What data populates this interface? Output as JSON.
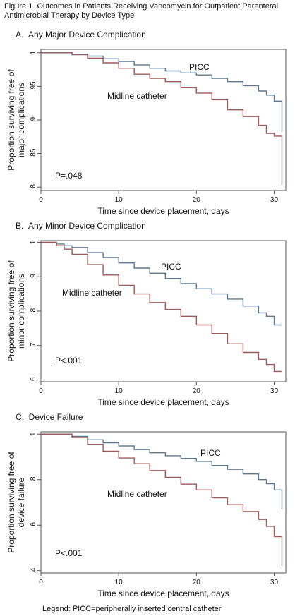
{
  "figure": {
    "title_line1": "Figure 1. Outcomes in Patients Receiving Vancomycin for Outpatient Parenteral",
    "title_line2": "Antimicrobial Therapy by Device Type",
    "legend_note": "Legend: PICC=peripherally inserted central catheter"
  },
  "colors": {
    "picc": "#5f7891",
    "midline": "#9c5b5c",
    "axis": "#555555",
    "plot_bg": "#ffffff"
  },
  "chart_data": [
    {
      "type": "line",
      "panel_label": "A.",
      "title": "Any Major Device Complication",
      "xlabel": "Time since device placement, days",
      "ylabel_line1": "Proportion surviving free of",
      "ylabel_line2": "major complications",
      "xlim": [
        0,
        31.5
      ],
      "ylim": [
        0.795,
        1.005
      ],
      "xticks": [
        0,
        10,
        20,
        30
      ],
      "yticks": [
        0.8,
        0.85,
        0.9,
        0.95,
        1
      ],
      "ytick_labels": [
        ".8",
        ".85",
        ".9",
        ".95",
        "1"
      ],
      "p_value": "P=.048",
      "series": [
        {
          "name": "PICC",
          "x": [
            0,
            2,
            4,
            6,
            8,
            10,
            12,
            14,
            16,
            18,
            20,
            22,
            24,
            26,
            28,
            29,
            30,
            31,
            31
          ],
          "y": [
            1,
            1,
            0.998,
            0.995,
            0.991,
            0.987,
            0.982,
            0.977,
            0.973,
            0.97,
            0.967,
            0.962,
            0.957,
            0.951,
            0.943,
            0.937,
            0.928,
            0.925,
            0.882
          ]
        },
        {
          "name": "Midline catheter",
          "x": [
            0,
            2,
            4,
            6,
            8,
            10,
            12,
            14,
            16,
            18,
            20,
            22,
            24,
            26,
            28,
            29,
            30,
            31,
            31
          ],
          "y": [
            1,
            1,
            0.997,
            0.992,
            0.985,
            0.977,
            0.968,
            0.962,
            0.957,
            0.948,
            0.94,
            0.93,
            0.915,
            0.905,
            0.892,
            0.88,
            0.876,
            0.874,
            0.803
          ]
        }
      ]
    },
    {
      "type": "line",
      "panel_label": "B.",
      "title": "Any Minor Device Complication",
      "xlabel": "Time since device placement, days",
      "ylabel_line1": "Proportion surviving free of",
      "ylabel_line2": "minor complications",
      "xlim": [
        0,
        31.5
      ],
      "ylim": [
        0.595,
        1.005
      ],
      "xticks": [
        0,
        10,
        20,
        30
      ],
      "yticks": [
        0.6,
        0.7,
        0.8,
        0.9,
        1
      ],
      "ytick_labels": [
        ".6",
        ".7",
        ".8",
        ".9",
        "1"
      ],
      "p_value": "P<.001",
      "series": [
        {
          "name": "PICC",
          "x": [
            0,
            2,
            3,
            4,
            6,
            8,
            10,
            12,
            14,
            16,
            18,
            20,
            22,
            24,
            26,
            28,
            29,
            30,
            31
          ],
          "y": [
            1,
            0.995,
            0.99,
            0.985,
            0.97,
            0.956,
            0.94,
            0.925,
            0.91,
            0.895,
            0.88,
            0.865,
            0.85,
            0.835,
            0.815,
            0.795,
            0.785,
            0.76,
            0.76
          ]
        },
        {
          "name": "Midline catheter",
          "x": [
            0,
            2,
            3,
            4,
            6,
            8,
            10,
            12,
            14,
            16,
            18,
            20,
            22,
            24,
            26,
            28,
            29,
            30,
            31
          ],
          "y": [
            1,
            0.99,
            0.98,
            0.965,
            0.935,
            0.905,
            0.875,
            0.85,
            0.825,
            0.805,
            0.785,
            0.76,
            0.735,
            0.705,
            0.68,
            0.66,
            0.645,
            0.625,
            0.625
          ]
        }
      ]
    },
    {
      "type": "line",
      "panel_label": "C.",
      "title": "Device Failure",
      "xlabel": "Time since device placement, days",
      "ylabel_line1": "Proportion surviving free of",
      "ylabel_line2": "device failure",
      "xlim": [
        0,
        31.5
      ],
      "ylim": [
        0.39,
        1.01
      ],
      "xticks": [
        0,
        10,
        20,
        30
      ],
      "yticks": [
        0.4,
        0.6,
        0.8,
        1
      ],
      "ytick_labels": [
        ".4",
        ".6",
        ".8",
        "1"
      ],
      "p_value": "P<.001",
      "series": [
        {
          "name": "PICC",
          "x": [
            0,
            2,
            4,
            6,
            8,
            10,
            12,
            14,
            16,
            18,
            20,
            22,
            24,
            26,
            28,
            29,
            30,
            31,
            31
          ],
          "y": [
            1,
            1,
            0.99,
            0.975,
            0.962,
            0.948,
            0.932,
            0.918,
            0.905,
            0.893,
            0.88,
            0.862,
            0.845,
            0.825,
            0.8,
            0.782,
            0.755,
            0.755,
            0.67
          ]
        },
        {
          "name": "Midline catheter",
          "x": [
            0,
            2,
            4,
            6,
            8,
            10,
            12,
            14,
            16,
            18,
            20,
            22,
            24,
            26,
            28,
            29,
            30,
            31,
            31
          ],
          "y": [
            1,
            1,
            0.985,
            0.955,
            0.925,
            0.895,
            0.87,
            0.84,
            0.81,
            0.78,
            0.755,
            0.72,
            0.69,
            0.66,
            0.625,
            0.595,
            0.55,
            0.55,
            0.42
          ]
        }
      ]
    }
  ]
}
